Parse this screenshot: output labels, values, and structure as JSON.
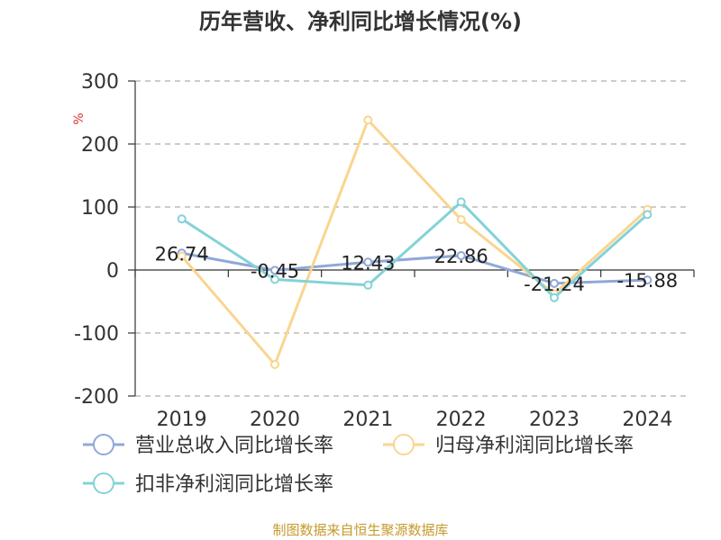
{
  "chart_data": {
    "type": "line",
    "title": "历年营收、净利同比增长情况(%)",
    "ylabel": "%",
    "categories": [
      "2019",
      "2020",
      "2021",
      "2022",
      "2023",
      "2024"
    ],
    "ylim": [
      -200,
      300
    ],
    "yticks": [
      300,
      200,
      100,
      0,
      -100,
      -200
    ],
    "grid": true,
    "legend_position": "bottom-left",
    "series": [
      {
        "name": "营业总收入同比增长率",
        "color": "#8fa8d8",
        "values": [
          26.74,
          -0.45,
          12.43,
          22.86,
          -21.24,
          -15.88
        ],
        "labels": [
          "26.74",
          "-0.45",
          "12.43",
          "22.86",
          "-21.24",
          "-15.88"
        ]
      },
      {
        "name": "归母净利润同比增长率",
        "color": "#fad58f",
        "values": [
          22,
          -150,
          238,
          80,
          -38,
          96
        ]
      },
      {
        "name": "扣非净利润同比增长率",
        "color": "#84d2d8",
        "values": [
          81,
          -15,
          -24,
          108,
          -44,
          88
        ]
      }
    ],
    "source": "制图数据来自恒生聚源数据库"
  }
}
